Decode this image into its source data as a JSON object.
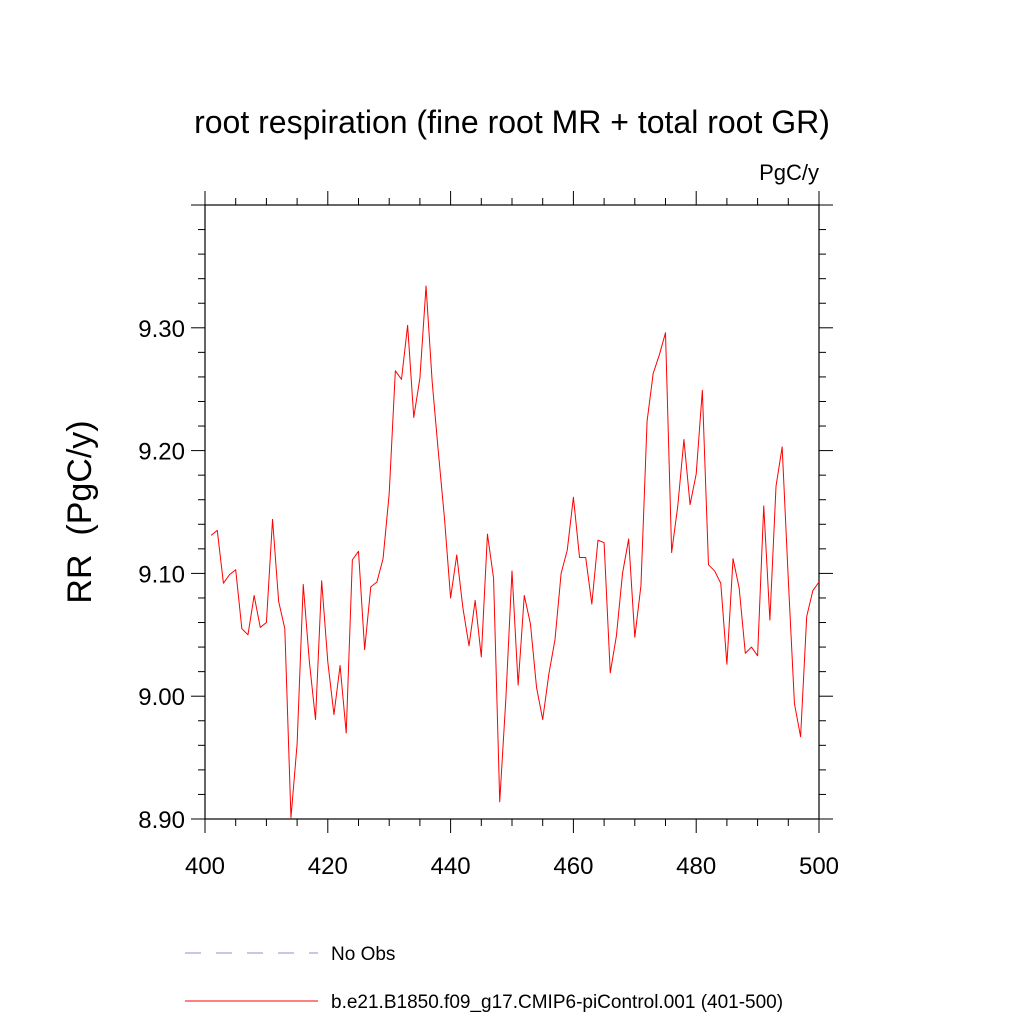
{
  "chart_data": {
    "type": "line",
    "title": "root respiration (fine root MR + total root GR)",
    "units_label": "PgC/y",
    "ylabel": "RR  (PgC/y)",
    "xlabel": "",
    "xlim": [
      400,
      500
    ],
    "ylim": [
      8.9,
      9.4
    ],
    "x_ticks": [
      400,
      420,
      440,
      460,
      480,
      500
    ],
    "x_tick_labels": [
      "400",
      "420",
      "440",
      "460",
      "480",
      "500"
    ],
    "y_ticks": [
      8.9,
      9.0,
      9.1,
      9.2,
      9.3
    ],
    "y_tick_labels": [
      "8.90",
      "9.00",
      "9.10",
      "9.20",
      "9.30"
    ],
    "grid": false,
    "legend_position": "bottom",
    "legend": [
      {
        "name": "No Obs",
        "color": "#8f8fd6",
        "style": "dashed"
      },
      {
        "name": "b.e21.B1850.f09_g17.CMIP6-piControl.001 (401-500)",
        "color": "#ff0000",
        "style": "solid"
      }
    ],
    "series": [
      {
        "name": "b.e21.B1850.f09_g17.CMIP6-piControl.001 (401-500)",
        "color": "#ff0000",
        "x": [
          401,
          402,
          403,
          404,
          405,
          406,
          407,
          408,
          409,
          410,
          411,
          412,
          413,
          414,
          415,
          416,
          417,
          418,
          419,
          420,
          421,
          422,
          423,
          424,
          425,
          426,
          427,
          428,
          429,
          430,
          431,
          432,
          433,
          434,
          435,
          436,
          437,
          438,
          439,
          440,
          441,
          442,
          443,
          444,
          445,
          446,
          447,
          448,
          449,
          450,
          451,
          452,
          453,
          454,
          455,
          456,
          457,
          458,
          459,
          460,
          461,
          462,
          463,
          464,
          465,
          466,
          467,
          468,
          469,
          470,
          471,
          472,
          473,
          474,
          475,
          476,
          477,
          478,
          479,
          480,
          481,
          482,
          483,
          484,
          485,
          486,
          487,
          488,
          489,
          490,
          491,
          492,
          493,
          494,
          495,
          496,
          497,
          498,
          499,
          500
        ],
        "values": [
          9.131,
          9.135,
          9.092,
          9.099,
          9.103,
          9.055,
          9.05,
          9.082,
          9.056,
          9.06,
          9.144,
          9.077,
          9.055,
          8.901,
          8.961,
          9.091,
          9.028,
          8.981,
          9.094,
          9.028,
          8.985,
          9.025,
          8.97,
          9.111,
          9.118,
          9.038,
          9.089,
          9.093,
          9.112,
          9.165,
          9.265,
          9.258,
          9.302,
          9.227,
          9.259,
          9.334,
          9.256,
          9.199,
          9.145,
          9.08,
          9.115,
          9.072,
          9.041,
          9.078,
          9.032,
          9.132,
          9.096,
          8.914,
          8.998,
          9.102,
          9.009,
          9.082,
          9.059,
          9.007,
          8.981,
          9.018,
          9.046,
          9.1,
          9.119,
          9.162,
          9.113,
          9.113,
          9.075,
          9.127,
          9.125,
          9.019,
          9.049,
          9.1,
          9.128,
          9.048,
          9.09,
          9.224,
          9.263,
          9.278,
          9.296,
          9.117,
          9.155,
          9.209,
          9.156,
          9.181,
          9.249,
          9.107,
          9.102,
          9.092,
          9.026,
          9.112,
          9.088,
          9.035,
          9.04,
          9.033,
          9.155,
          9.062,
          9.171,
          9.203,
          9.095,
          8.994,
          8.967,
          9.065,
          9.086,
          9.093
        ]
      }
    ]
  }
}
